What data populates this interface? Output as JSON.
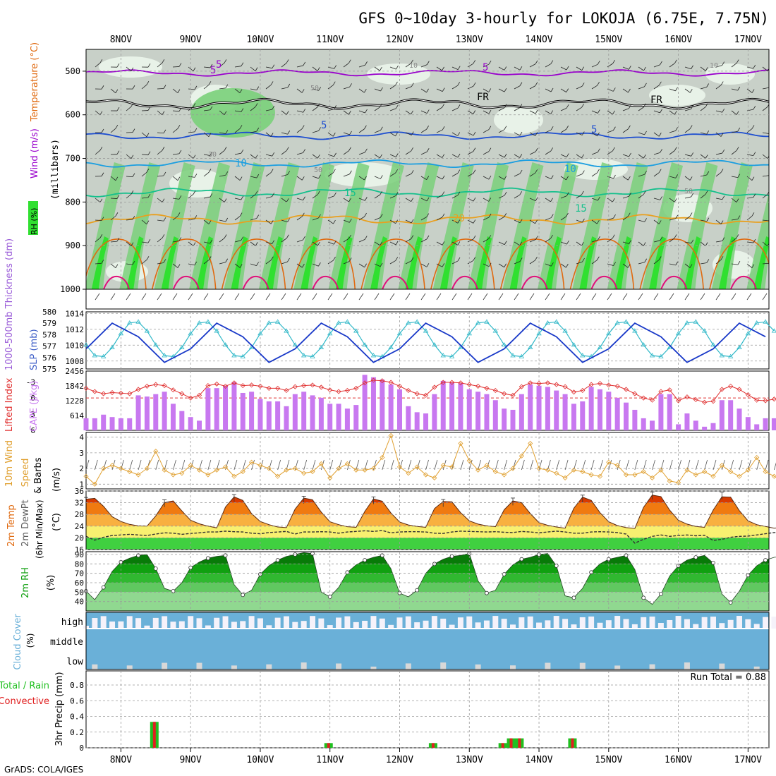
{
  "header": {
    "title": "GFS 0~10day 3-hourly for LOKOJA (6.75E, 7.75N)",
    "footer": "GrADS: COLA/IGES"
  },
  "time_axis": {
    "dates": [
      "8NOV",
      "9NOV",
      "10NOV",
      "11NOV",
      "12NOV",
      "13NOV",
      "14NOV",
      "15NOV",
      "16NOV",
      "17NOV"
    ],
    "start_day": 7.5,
    "end_day": 17.3
  },
  "colors": {
    "purple": "#9900cc",
    "black": "#000000",
    "blue": "#1f4fd0",
    "lightblue": "#1a9ee0",
    "teal": "#14c08c",
    "orange": "#e8a020",
    "darkorange": "#e06a10",
    "magenta": "#e0107a",
    "rh_light": "#e8f2e8",
    "rh_gray": "#c8d0c8",
    "rh_mid": "#7ad07a",
    "rh_bright": "#30e030",
    "slp": "#1838c8",
    "thick": "#30b8c8",
    "cape": "#c878f0",
    "lifted": "#e03030",
    "wind10": "#e0a030",
    "temp_hot": "#d83a00",
    "temp_warm": "#f07a10",
    "temp_mid": "#f8b040",
    "temp_yellow": "#f8f070",
    "temp_green": "#40d040",
    "rh_green": "#10a010",
    "cloud_blue": "#6ab0d8",
    "cloud_white": "#f5f2fa",
    "cloud_gray": "#d8d8d8",
    "rain_green": "#20c020",
    "rain_red": "#e02020"
  },
  "panels": {
    "upper": {
      "ylabel_wind": "Wind (m/s)",
      "ylabel_temp": "Temperature (°C)",
      "ylabel_rh": "RH (%)",
      "ylabel_pressure": "(millibars)",
      "contour_labels": [
        "5",
        "5",
        "FR",
        "FR",
        "5",
        "5",
        "10",
        "10",
        "15",
        "15",
        "20",
        "10",
        "50",
        "50",
        "50",
        "30",
        "10",
        "5"
      ]
    },
    "slp": {
      "ylabel_left": "1000-500mb Thickness (dm)",
      "ylabel_right": "SLP (mb)"
    },
    "cape": {
      "ylabel_left": "Lifted Index",
      "ylabel_right": "CAPE (J/kg)"
    },
    "wind10": {
      "ylabel_1": "10m Wind",
      "ylabel_2": "Speed",
      "ylabel_3": "& Barbs",
      "ylabel_4": "(m/s)"
    },
    "temp2m": {
      "ylabel_1": "2m Temp",
      "ylabel_2": "2m DewPt",
      "ylabel_3": "(6hr Min/Max)",
      "ylabel_4": "(°C)"
    },
    "rh2m": {
      "ylabel_1": "2m RH",
      "ylabel_2": "(%)"
    },
    "cloud": {
      "ylabel_1": "Cloud Cover",
      "ylabel_2": "(%)",
      "levels": [
        "high",
        "middle",
        "low"
      ]
    },
    "precip": {
      "ylabel_1": "Total / Rain",
      "ylabel_2": "Convective",
      "ylabel_3": "3hr Precip (mm)",
      "run_total": "Run Total = 0.88"
    }
  },
  "chart_data": {
    "type": "line",
    "title": "GFS 0~10day 3-hourly for LOKOJA (6.75E, 7.75N)",
    "x_dates": [
      "8NOV",
      "9NOV",
      "10NOV",
      "11NOV",
      "12NOV",
      "13NOV",
      "14NOV",
      "15NOV",
      "16NOV",
      "17NOV"
    ],
    "pressure": {
      "ylim": [
        1000,
        450
      ],
      "ticks": [
        500,
        600,
        700,
        800,
        900,
        1000
      ],
      "isotherms": [
        {
          "label": "-5",
          "base": 504,
          "amp": 5
        },
        {
          "label": "FR",
          "base": 575,
          "amp": 8
        },
        {
          "label": "5",
          "base": 648,
          "amp": 6
        },
        {
          "label": "10",
          "base": 712,
          "amp": 6
        },
        {
          "label": "15",
          "base": 778,
          "amp": 7
        },
        {
          "label": "20",
          "base": 840,
          "amp": 8
        }
      ]
    },
    "slp": {
      "ylim": [
        1007,
        1014.2
      ],
      "ticks": [
        1008,
        1010,
        1012,
        1014
      ],
      "amp": 2.6,
      "base": 1010.3,
      "phase": 0.55
    },
    "thickness": {
      "ylim": [
        575,
        580
      ],
      "ticks": [
        575,
        576,
        577,
        578,
        579,
        580
      ],
      "amp": 1.6,
      "base": 577.6,
      "phase": 0.05
    },
    "cape_lifted": {
      "cape_ticks": [
        614,
        1228,
        1842,
        2456
      ],
      "cape_ylim": [
        0,
        2456
      ],
      "li_ticks": [
        -3,
        0,
        3,
        6
      ],
      "li_ylim": [
        6,
        -5
      ],
      "cape_values": [
        500,
        500,
        650,
        550,
        500,
        500,
        1450,
        1400,
        1500,
        1600,
        1100,
        800,
        550,
        400,
        1750,
        1750,
        1850,
        2000,
        1550,
        1600,
        1300,
        1200,
        1200,
        1000,
        1500,
        1600,
        1450,
        1350,
        1100,
        1100,
        900,
        1050,
        2300,
        2200,
        2100,
        1900,
        1700,
        1000,
        750,
        700,
        1500,
        2050,
        2000,
        1950,
        1700,
        1600,
        1500,
        1250,
        900,
        850,
        1500,
        1900,
        1850,
        1800,
        1650,
        1500,
        1100,
        1200,
        1800,
        1700,
        1600,
        1350,
        1150,
        850,
        500,
        400,
        1500,
        1500,
        250,
        700,
        400,
        150,
        300,
        1250,
        1250,
        900,
        550,
        250,
        500,
        500,
        500
      ],
      "li_values": [
        -1.8,
        -1.2,
        -0.8,
        -1,
        -0.9,
        -0.8,
        -1.6,
        -2.2,
        -2.5,
        -2.3,
        -1.5,
        -0.8,
        0,
        -0.5,
        -2.3,
        -2.6,
        -2.2,
        -2.8,
        -2.3,
        -2.4,
        -2.2,
        -1.8,
        -1.8,
        -1.4,
        -2.1,
        -2.3,
        -2.4,
        -2.0,
        -1.5,
        -1.2,
        -1.4,
        -1.8,
        -2.8,
        -3.3,
        -3.2,
        -2.9,
        -2.2,
        -1.4,
        -0.8,
        -0.5,
        -2,
        -2.9,
        -2.9,
        -2.8,
        -2.5,
        -2.2,
        -1.8,
        -1.4,
        -0.8,
        -0.5,
        -2.1,
        -2.8,
        -2.7,
        -2.8,
        -2.5,
        -2.1,
        -1.1,
        -1.4,
        -2.5,
        -2.7,
        -2.4,
        -2.2,
        -1.6,
        -0.8,
        0,
        0.4,
        -1.2,
        -1.5,
        0.5,
        -0.2,
        0.3,
        0.8,
        0.6,
        -1.6,
        -2.2,
        -1.6,
        -0.6,
        0.4,
        0.5,
        0.2,
        -0.2
      ]
    },
    "wind10": {
      "ylim": [
        0.7,
        4.3
      ],
      "ticks": [
        1,
        2,
        3,
        4
      ],
      "values": [
        1.5,
        1.0,
        2.0,
        2.2,
        2.0,
        1.8,
        1.6,
        2.0,
        3.1,
        1.9,
        1.6,
        1.7,
        2.2,
        1.9,
        1.6,
        1.9,
        2.1,
        1.5,
        1.8,
        2.4,
        2.2,
        2.0,
        1.5,
        1.9,
        2.0,
        1.7,
        1.8,
        2.3,
        1.4,
        2.0,
        2.3,
        1.9,
        1.9,
        2.0,
        2.7,
        4.1,
        2.1,
        1.7,
        2.1,
        1.6,
        1.4,
        2.2,
        2.1,
        3.6,
        2.5,
        1.9,
        2.2,
        1.8,
        1.6,
        2.0,
        2.8,
        3.6,
        2.0,
        1.9,
        1.7,
        1.4,
        1.9,
        1.8,
        1.6,
        1.5,
        2.4,
        2.2,
        1.6,
        1.6,
        1.8,
        1.4,
        1.9,
        1.2,
        1.1,
        1.9,
        1.6,
        1.8,
        1.5,
        2.2,
        1.8,
        1.5,
        1.9,
        2.7,
        1.8,
        1.5,
        1.2
      ]
    },
    "temp2m": {
      "ylim": [
        16,
        36
      ],
      "ticks": [
        16,
        20,
        24,
        28,
        32,
        36
      ],
      "temp_values": [
        33.2,
        33.5,
        30.8,
        27.2,
        25.6,
        24.6,
        24.1,
        24.0,
        27.5,
        32.0,
        32.6,
        29.2,
        26.0,
        24.8,
        24.0,
        23.4,
        30.5,
        34.0,
        32.8,
        28.3,
        25.6,
        24.5,
        23.7,
        23.5,
        29.8,
        33.6,
        33.0,
        28.8,
        25.5,
        24.5,
        23.8,
        23.6,
        29.0,
        33.3,
        32.5,
        28.5,
        25.4,
        24.4,
        23.9,
        23.6,
        30.0,
        32.4,
        32.3,
        28.6,
        25.8,
        24.7,
        24.1,
        23.8,
        29.6,
        32.6,
        32.0,
        28.3,
        25.2,
        24.3,
        23.7,
        23.3,
        30.1,
        33.9,
        32.8,
        28.6,
        25.5,
        24.2,
        23.5,
        23.2,
        30.4,
        34.6,
        34.1,
        29.5,
        26.0,
        24.7,
        23.9,
        23.6,
        29.5,
        34.0,
        33.9,
        29.3,
        25.8,
        24.5,
        23.9,
        23.3,
        23.6
      ],
      "dew_values": [
        20.5,
        19.2,
        20.2,
        20.8,
        21.0,
        21.2,
        21.0,
        20.8,
        21.3,
        21.7,
        21.6,
        21.2,
        21.5,
        21.7,
        22.0,
        22.0,
        22.3,
        22.1,
        22.0,
        21.6,
        21.4,
        21.8,
        22.0,
        22.2,
        21.3,
        22.0,
        22.0,
        22.1,
        22.0,
        21.6,
        22.0,
        22.2,
        22.4,
        22.2,
        22.5,
        21.7,
        22.0,
        22.1,
        22.1,
        22.0,
        21.6,
        21.5,
        22.0,
        22.3,
        22.2,
        22.1,
        22.0,
        22.1,
        21.9,
        21.8,
        22.2,
        22.0,
        21.7,
        22.0,
        22.3,
        22.0,
        21.6,
        21.6,
        22.0,
        22.1,
        22.0,
        21.8,
        21.3,
        18.2,
        19.5,
        20.5,
        21.0,
        20.5,
        20.8,
        21.0,
        20.7,
        20.9,
        19.1,
        19.5,
        20.2,
        20.5,
        20.6,
        21.0,
        21.4,
        21.8,
        22.0
      ],
      "max_marks": [
        33.8,
        0,
        0,
        0,
        0,
        0,
        0,
        0,
        0,
        33.0,
        0,
        0,
        0,
        0,
        0,
        0,
        0,
        34.8,
        0,
        0,
        0,
        0,
        0,
        0,
        0,
        34.2,
        0,
        0,
        0,
        0,
        0,
        0,
        0,
        34.0,
        0,
        0,
        0,
        0,
        0,
        0,
        0,
        33.1,
        0,
        0,
        0,
        0,
        0,
        0,
        0,
        33.6,
        0,
        0,
        0,
        0,
        0,
        0,
        0,
        34.6,
        0,
        0,
        0,
        0,
        0,
        0,
        0,
        35.6,
        0,
        0,
        0,
        0,
        0,
        0,
        0,
        35.6,
        0,
        0,
        0,
        0,
        0,
        0,
        0
      ]
    },
    "rh2m": {
      "ylim": [
        30,
        93
      ],
      "ticks": [
        40,
        50,
        60,
        70,
        80,
        90
      ],
      "values": [
        51,
        42,
        55,
        72,
        82,
        86,
        89,
        90,
        75,
        54,
        51,
        60,
        76,
        82,
        86,
        88,
        89,
        58,
        47,
        52,
        69,
        78,
        84,
        88,
        90,
        92,
        91,
        50,
        45,
        55,
        71,
        79,
        84,
        87,
        89,
        75,
        49,
        45,
        52,
        70,
        80,
        85,
        88,
        89,
        91,
        62,
        49,
        52,
        69,
        79,
        85,
        87,
        90,
        91,
        78,
        46,
        44,
        54,
        71,
        80,
        85,
        87,
        89,
        74,
        44,
        37,
        48,
        67,
        78,
        84,
        87,
        89,
        81,
        48,
        39,
        51,
        68,
        78,
        84,
        87,
        88
      ]
    },
    "cloud": {
      "levels": [
        "high",
        "middle",
        "low"
      ]
    },
    "precip": {
      "ylim": [
        0,
        0.98
      ],
      "ticks": [
        0,
        0.2,
        0.4,
        0.6,
        0.8
      ],
      "events": [
        {
          "day": 8.48,
          "value": 0.33
        },
        {
          "day": 10.98,
          "value": 0.06
        },
        {
          "day": 12.48,
          "value": 0.06
        },
        {
          "day": 13.48,
          "value": 0.06
        },
        {
          "day": 13.6,
          "value": 0.12
        },
        {
          "day": 13.72,
          "value": 0.12
        },
        {
          "day": 14.48,
          "value": 0.12
        }
      ]
    }
  }
}
